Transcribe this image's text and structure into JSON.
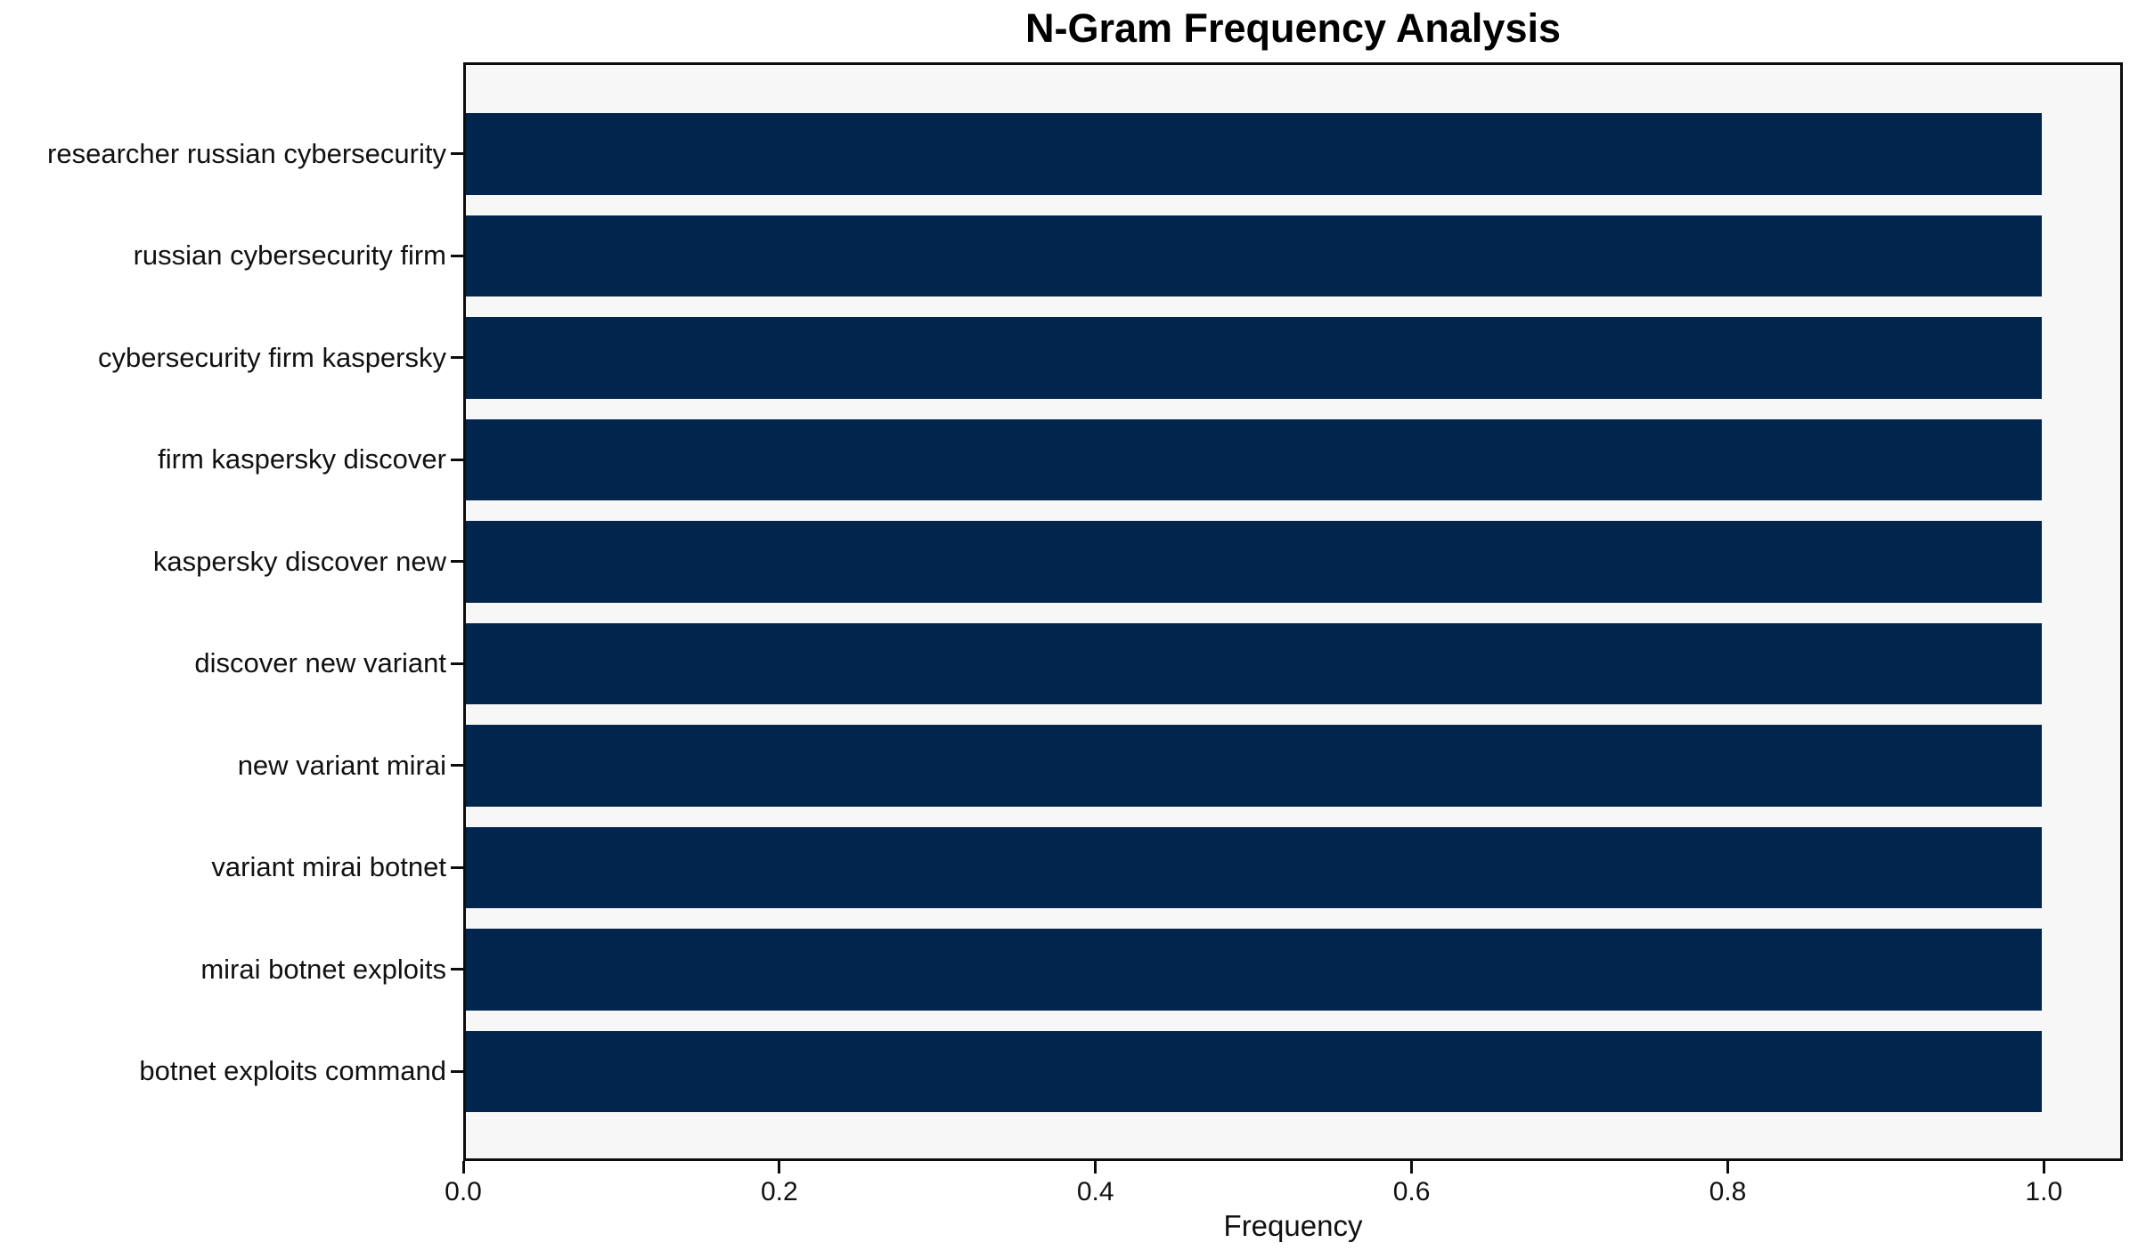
{
  "chart_data": {
    "type": "bar",
    "orientation": "horizontal",
    "title": "N-Gram Frequency Analysis",
    "xlabel": "Frequency",
    "ylabel": "",
    "categories": [
      "researcher russian cybersecurity",
      "russian cybersecurity firm",
      "cybersecurity firm kaspersky",
      "firm kaspersky discover",
      "kaspersky discover new",
      "discover new variant",
      "new variant mirai",
      "variant mirai botnet",
      "mirai botnet exploits",
      "botnet exploits command"
    ],
    "values": [
      1.0,
      1.0,
      1.0,
      1.0,
      1.0,
      1.0,
      1.0,
      1.0,
      1.0,
      1.0
    ],
    "xlim": [
      0,
      1.05
    ],
    "xticks": [
      0.0,
      0.2,
      0.4,
      0.6,
      0.8,
      1.0
    ],
    "xtick_labels": [
      "0.0",
      "0.2",
      "0.4",
      "0.6",
      "0.8",
      "1.0"
    ],
    "grid": false,
    "legend": null,
    "bar_color": "#02254d",
    "plot_background": "#f7f7f7",
    "axis_color": "#0c0c0c",
    "text_color": "#111111",
    "figure_background": "#ffffff"
  }
}
